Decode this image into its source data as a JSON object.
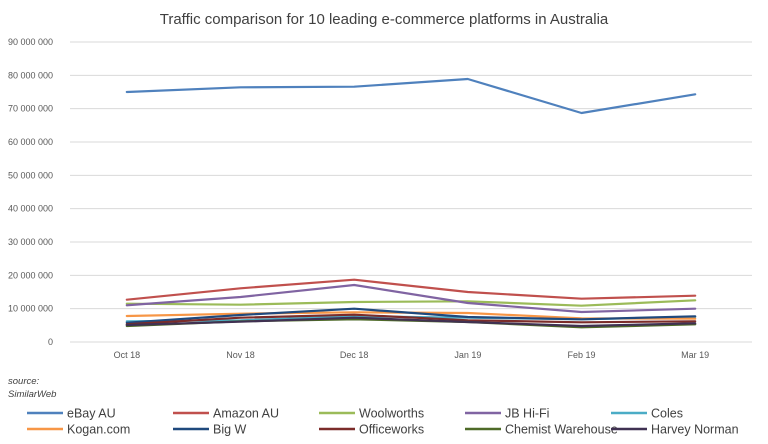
{
  "chart_data": {
    "type": "line",
    "title": "Traffic comparison for 10 leading e-commerce platforms in Australia",
    "categories": [
      "Oct 18",
      "Nov 18",
      "Dec 18",
      "Jan 19",
      "Feb 19",
      "Mar 19"
    ],
    "y_ticks": [
      "0",
      "10 000 000",
      "20 000 000",
      "30 000 000",
      "40 000 000",
      "50 000 000",
      "60 000 000",
      "70 000 000",
      "80 000 000",
      "90 000 000"
    ],
    "ylim": [
      0,
      90000000
    ],
    "grid": true,
    "legend_position": "bottom",
    "series": [
      {
        "name": "eBay AU",
        "color": "#4f81bd",
        "values": [
          75000000,
          76400000,
          76600000,
          78900000,
          68700000,
          74300000
        ]
      },
      {
        "name": "Amazon AU",
        "color": "#c0504d",
        "values": [
          12700000,
          16100000,
          18700000,
          15000000,
          13000000,
          13900000
        ]
      },
      {
        "name": "Woolworths",
        "color": "#9bbb59",
        "values": [
          11500000,
          11200000,
          12000000,
          12200000,
          10900000,
          12500000
        ]
      },
      {
        "name": "JB Hi-Fi",
        "color": "#8064a2",
        "values": [
          11000000,
          13500000,
          17100000,
          11700000,
          9000000,
          10000000
        ]
      },
      {
        "name": "Coles",
        "color": "#4bacc6",
        "values": [
          6200000,
          6500000,
          7700000,
          7300000,
          6800000,
          7500000
        ]
      },
      {
        "name": "Kogan.com",
        "color": "#f79646",
        "values": [
          7800000,
          8500000,
          8900000,
          8700000,
          7100000,
          7000000
        ]
      },
      {
        "name": "Big W",
        "color": "#1f497d",
        "values": [
          5800000,
          8100000,
          10000000,
          7500000,
          6800000,
          7700000
        ]
      },
      {
        "name": "Officeworks",
        "color": "#7b2c2a",
        "values": [
          5300000,
          7300000,
          8200000,
          6500000,
          5900000,
          6200000
        ]
      },
      {
        "name": "Chemist Warehouse",
        "color": "#4e6a28",
        "values": [
          4800000,
          6200000,
          6800000,
          6000000,
          4400000,
          5300000
        ]
      },
      {
        "name": "Harvey Norman",
        "color": "#403152",
        "values": [
          5100000,
          6100000,
          7300000,
          6000000,
          4800000,
          5600000
        ]
      }
    ]
  },
  "source": {
    "line1": "source:",
    "line2": "SimilarWeb"
  }
}
